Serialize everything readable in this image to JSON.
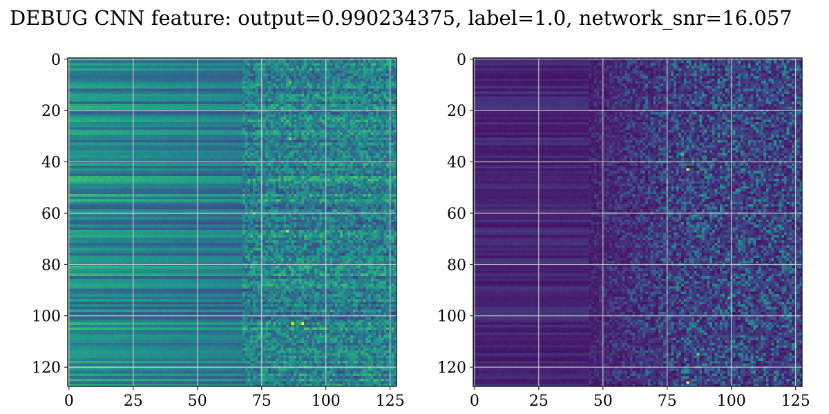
{
  "figure": {
    "title": "DEBUG CNN feature: output=0.990234375, label=1.0, network_snr=16.057"
  },
  "chart_data": [
    {
      "type": "heatmap",
      "title": "",
      "xlabel": "",
      "ylabel": "",
      "xlim": [
        0,
        127
      ],
      "ylim": [
        127,
        0
      ],
      "xticks": [
        0,
        25,
        50,
        75,
        100,
        125
      ],
      "yticks": [
        0,
        20,
        40,
        60,
        80,
        100,
        120
      ],
      "grid": true,
      "colormap": "viridis",
      "shape": [
        128,
        128
      ],
      "description_of_pattern": "horizontal banding in columns 0-70; noisy speckle from column ~70 onward; mid-range intensity overall",
      "hotspots": [
        {
          "row": 31,
          "col": 86,
          "level": 0.85
        },
        {
          "row": 67,
          "col": 85,
          "level": 0.9
        },
        {
          "row": 103,
          "col": 87,
          "level": 0.95
        },
        {
          "row": 103,
          "col": 91,
          "level": 1.0
        },
        {
          "row": 60,
          "col": 72,
          "level": 0.8
        },
        {
          "row": 9,
          "col": 86,
          "level": 0.8
        }
      ]
    },
    {
      "type": "heatmap",
      "title": "",
      "xlabel": "",
      "ylabel": "",
      "xlim": [
        0,
        127
      ],
      "ylim": [
        127,
        0
      ],
      "xticks": [
        0,
        25,
        50,
        75,
        100,
        125
      ],
      "yticks": [
        0,
        20,
        40,
        60,
        80,
        100,
        120
      ],
      "grid": true,
      "colormap": "viridis",
      "shape": [
        128,
        128
      ],
      "description_of_pattern": "mostly dark; noisy speckle from column ~50 onward with brighter spots around columns 75-100",
      "hotspots": [
        {
          "row": 43,
          "col": 83,
          "level": 1.0
        },
        {
          "row": 126,
          "col": 83,
          "level": 1.0
        },
        {
          "row": 93,
          "col": 99,
          "level": 0.7
        },
        {
          "row": 37,
          "col": 81,
          "level": 0.7
        },
        {
          "row": 115,
          "col": 87,
          "level": 0.8
        }
      ]
    }
  ],
  "colors": {
    "grid": "#d9d9d9",
    "frame": "#000000"
  }
}
